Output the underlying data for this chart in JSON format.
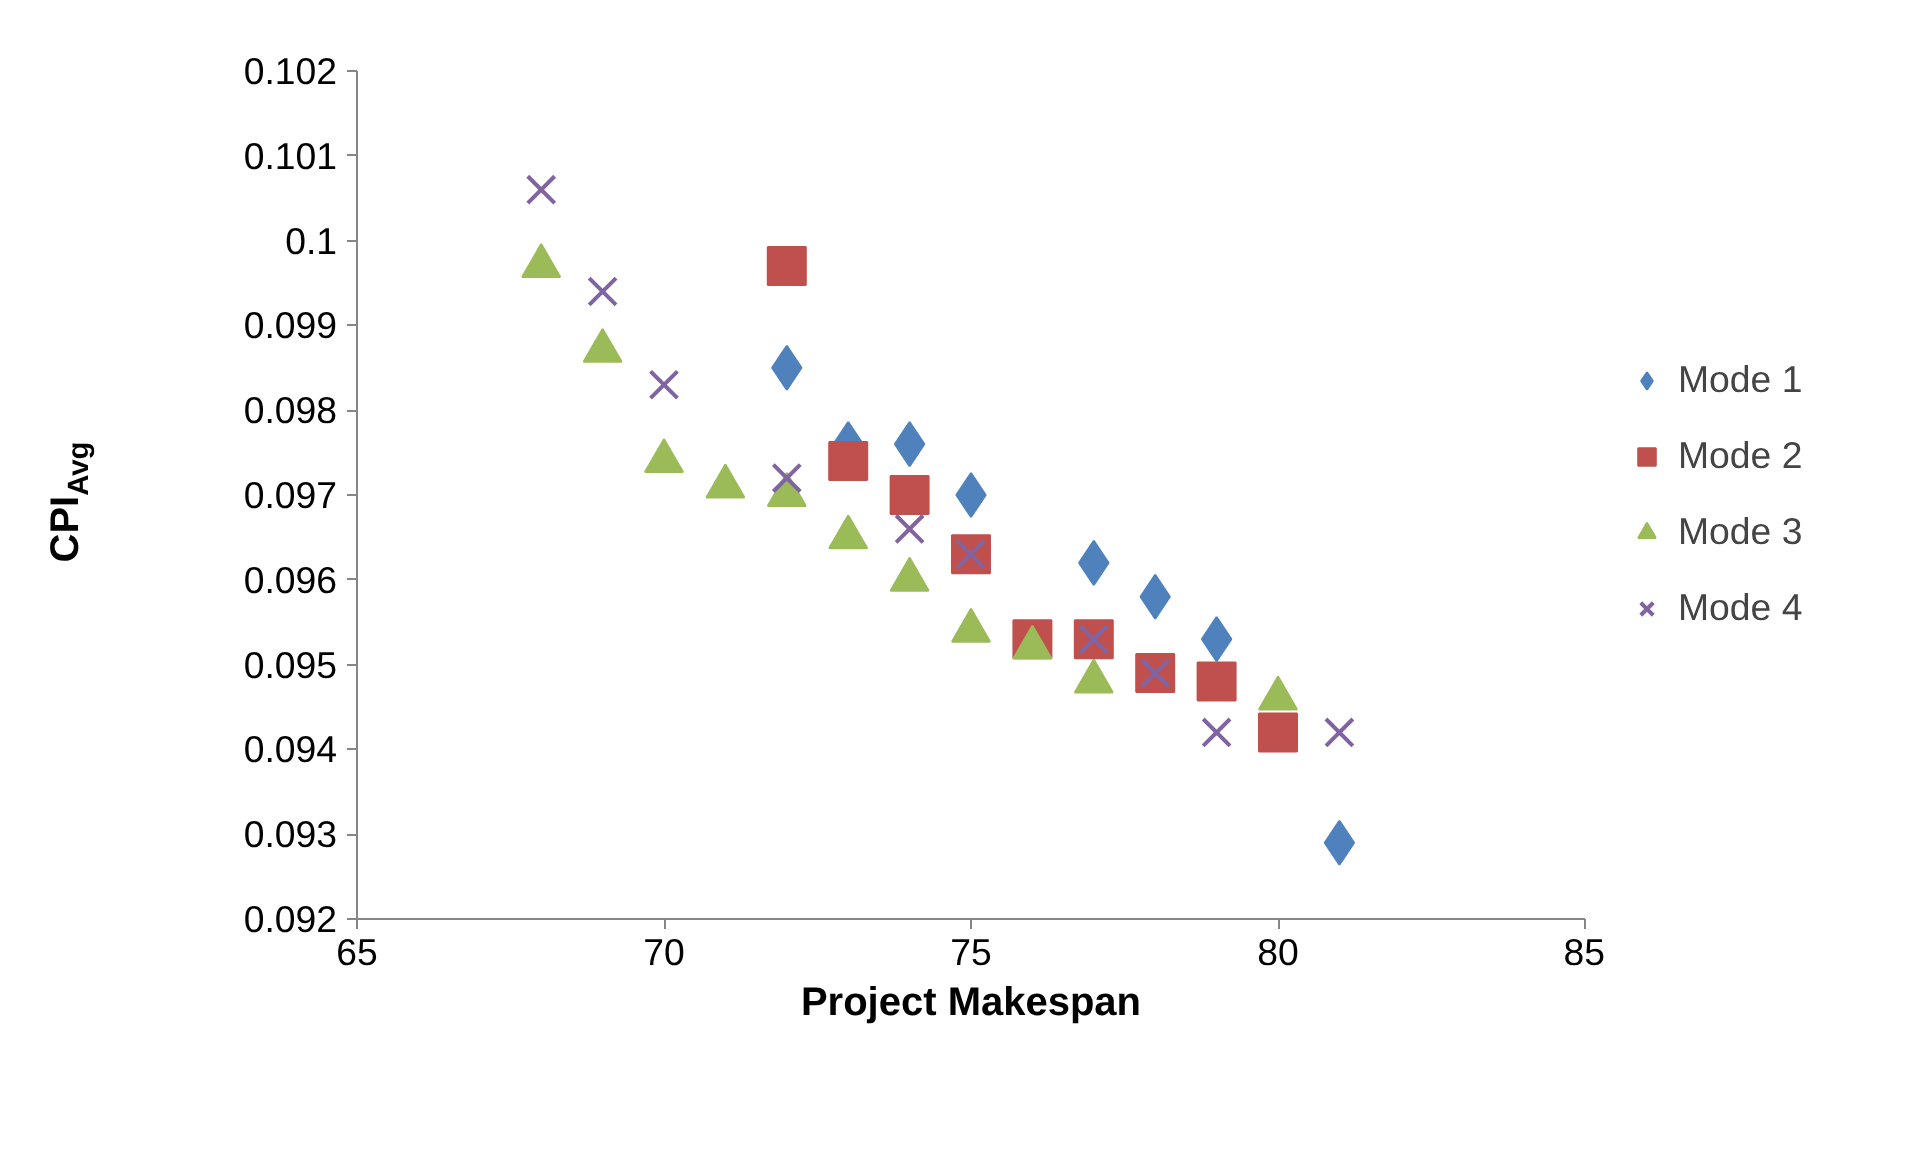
{
  "chart_data": {
    "type": "scatter",
    "xlabel": "Project Makespan",
    "ylabel": "CPI$_{Avg}$",
    "xlim": [
      65,
      85
    ],
    "xticks": [
      65,
      70,
      75,
      80,
      85
    ],
    "ylim": [
      0.092,
      0.102
    ],
    "yticks": [
      0.092,
      0.093,
      0.094,
      0.095,
      0.096,
      0.097,
      0.098,
      0.099,
      0.1,
      0.101,
      0.102
    ],
    "grid": false,
    "legend": "right",
    "series": [
      {
        "name": "Mode 1",
        "color": "#4f81bd",
        "marker": "diamond",
        "x": [
          72,
          73,
          74,
          75,
          77,
          78,
          79,
          81
        ],
        "values": [
          0.0985,
          0.0976,
          0.0976,
          0.097,
          0.0962,
          0.0958,
          0.0953,
          0.0929
        ]
      },
      {
        "name": "Mode 2",
        "color": "#c0504d",
        "marker": "square",
        "x": [
          72,
          73,
          74,
          75,
          76,
          77,
          78,
          79,
          80
        ],
        "values": [
          0.0997,
          0.0974,
          0.097,
          0.0963,
          0.0953,
          0.0953,
          0.0949,
          0.0948,
          0.0942
        ]
      },
      {
        "name": "Mode 3",
        "color": "#9bbb59",
        "marker": "triangle",
        "x": [
          68,
          69,
          70,
          71,
          72,
          73,
          74,
          75,
          76,
          77,
          80
        ],
        "values": [
          0.0997,
          0.0987,
          0.0974,
          0.0971,
          0.097,
          0.0965,
          0.096,
          0.0954,
          0.0952,
          0.0948,
          0.0946
        ]
      },
      {
        "name": "Mode 4",
        "color": "#8064a2",
        "marker": "cross",
        "x": [
          68,
          69,
          70,
          72,
          74,
          75,
          77,
          78,
          79,
          81
        ],
        "values": [
          0.1006,
          0.0994,
          0.0983,
          0.0972,
          0.0966,
          0.0963,
          0.0953,
          0.0949,
          0.0942,
          0.0942
        ]
      }
    ]
  }
}
